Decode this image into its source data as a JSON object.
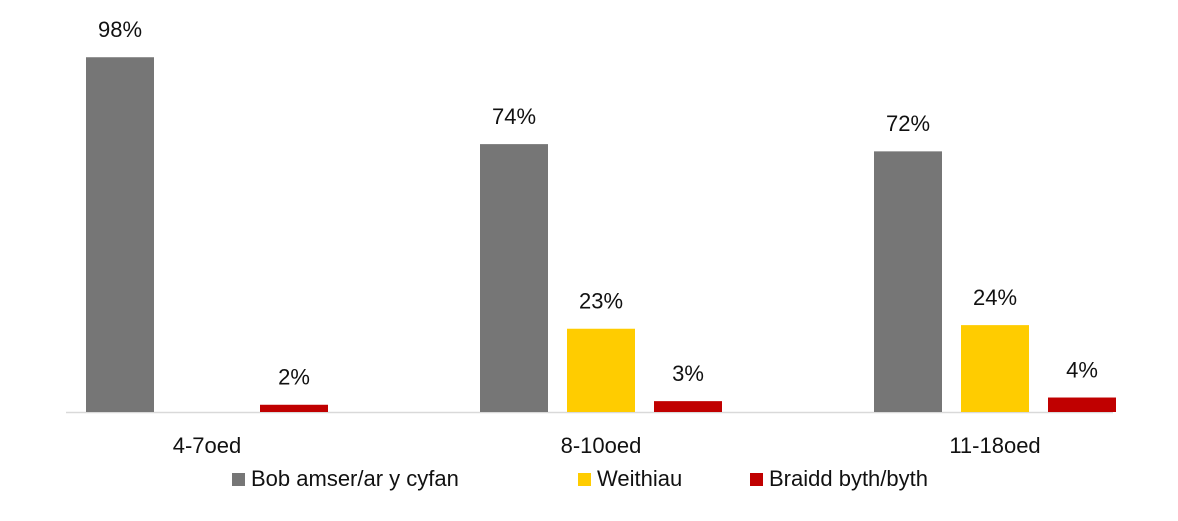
{
  "chart_data": {
    "type": "bar",
    "categories": [
      "4-7oed",
      "8-10oed",
      "11-18oed"
    ],
    "series": [
      {
        "name": "Bob amser/ar y cyfan",
        "color": "#767676",
        "values": [
          98,
          74,
          72
        ],
        "value_labels": [
          "98%",
          "74%",
          "72%"
        ]
      },
      {
        "name": "Weithiau",
        "color": "#ffcc00",
        "values": [
          null,
          23,
          24
        ],
        "value_labels": [
          null,
          "23%",
          "24%"
        ]
      },
      {
        "name": "Braidd byth/byth",
        "color": "#c00000",
        "values": [
          2,
          3,
          4
        ],
        "value_labels": [
          "2%",
          "3%",
          "4%"
        ]
      }
    ],
    "legend": "bottom"
  }
}
